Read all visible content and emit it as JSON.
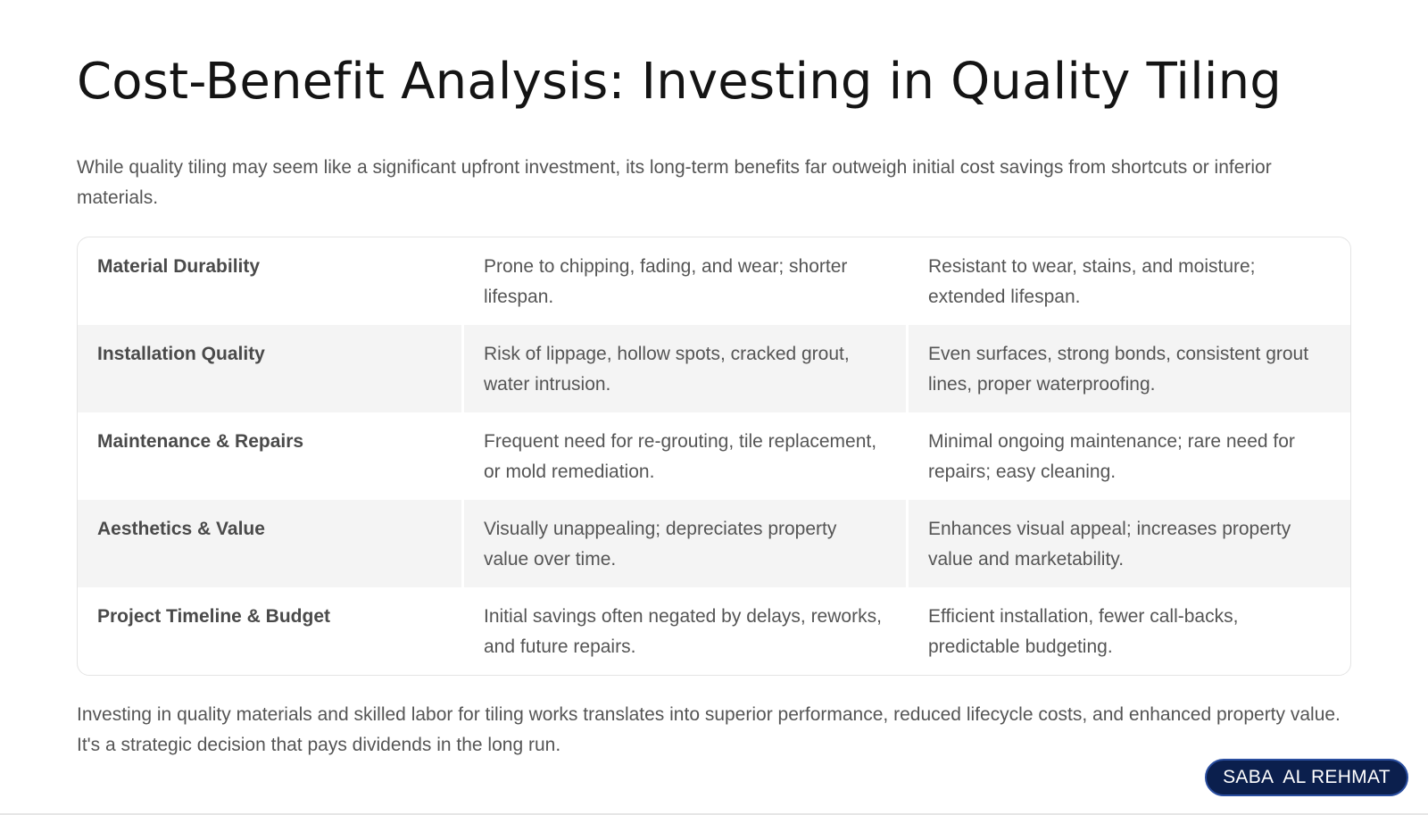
{
  "page": {
    "title": "Cost-Benefit Analysis: Investing in Quality Tiling",
    "intro": "While quality tiling may seem like a significant upfront investment, its long-term benefits far outweigh initial cost savings from shortcuts or inferior materials.",
    "conclusion": "Investing in quality materials and skilled labor for tiling works translates into superior performance, reduced lifecycle costs, and enhanced property value. It's a strategic decision that pays dividends in the long run."
  },
  "table": {
    "rows": [
      {
        "factor": "Material Durability",
        "low_quality": "Prone to chipping, fading, and wear; shorter lifespan.",
        "high_quality": "Resistant to wear, stains, and moisture; extended lifespan."
      },
      {
        "factor": "Installation Quality",
        "low_quality": "Risk of lippage, hollow spots, cracked grout, water intrusion.",
        "high_quality": "Even surfaces, strong bonds, consistent grout lines, proper waterproofing."
      },
      {
        "factor": "Maintenance & Repairs",
        "low_quality": "Frequent need for re-grouting, tile replacement, or mold remediation.",
        "high_quality": "Minimal ongoing maintenance; rare need for repairs; easy cleaning."
      },
      {
        "factor": "Aesthetics & Value",
        "low_quality": "Visually unappealing; depreciates property value over time.",
        "high_quality": "Enhances visual appeal; increases property value and marketability."
      },
      {
        "factor": "Project Timeline & Budget",
        "low_quality": "Initial savings often negated by delays, reworks, and future repairs.",
        "high_quality": "Efficient installation, fewer call-backs, predictable budgeting."
      }
    ]
  },
  "brand": {
    "label": "SABA  AL REHMAT"
  },
  "colors": {
    "badge_background": "#0b1f4d",
    "row_alt_background": "#f4f4f4"
  }
}
